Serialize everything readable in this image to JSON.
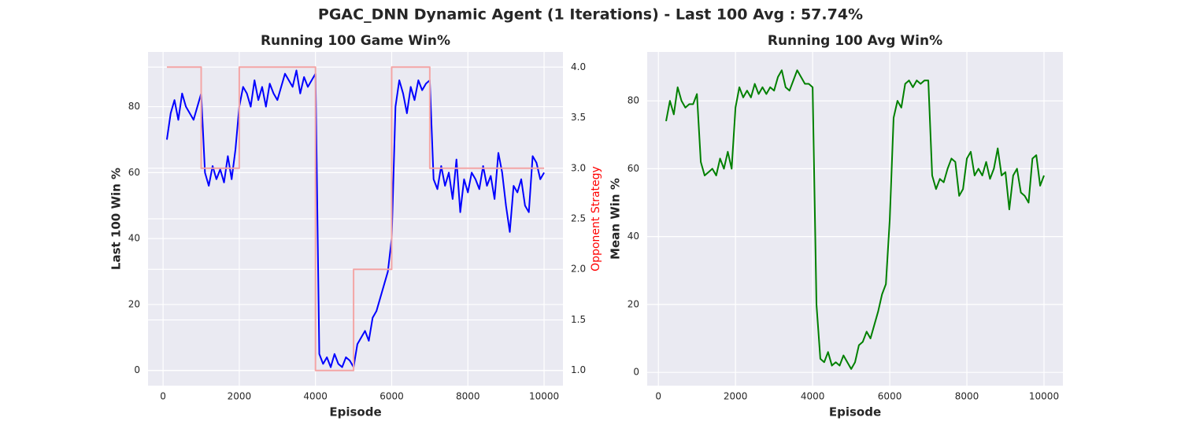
{
  "title": "PGAC_DNN Dynamic Agent (1 Iterations) -  Last 100 Avg : 57.74%",
  "chart_data": [
    {
      "type": "line",
      "title": "Running 100 Game Win%",
      "xlabel": "Episode",
      "ylabel": "Last 100 Win %",
      "y2label": "Opponent Strategy",
      "y2label_color": "#ff0000",
      "xlim": [
        -395,
        10495
      ],
      "xticks": [
        0,
        2000,
        4000,
        6000,
        8000,
        10000
      ],
      "ylim": [
        -4.6,
        96.6
      ],
      "yticks": [
        0,
        20,
        40,
        60,
        80
      ],
      "y2lim": [
        0.85,
        4.15
      ],
      "y2ticks": [
        {
          "value": 1,
          "label": "1.0"
        },
        1.5,
        {
          "value": 2,
          "label": "2.0"
        },
        2.5,
        {
          "value": 3,
          "label": "3.0"
        },
        3.5,
        {
          "value": 4,
          "label": "4.0"
        }
      ],
      "grid": true,
      "series": [
        {
          "color": "#0000ff",
          "width": 2,
          "x": [
            100,
            200,
            300,
            400,
            500,
            600,
            700,
            800,
            900,
            1000,
            1100,
            1200,
            1300,
            1400,
            1500,
            1600,
            1700,
            1800,
            1900,
            2000,
            2100,
            2200,
            2300,
            2400,
            2500,
            2600,
            2700,
            2800,
            2900,
            3000,
            3100,
            3200,
            3300,
            3400,
            3500,
            3600,
            3700,
            3800,
            3900,
            4000,
            4100,
            4200,
            4300,
            4400,
            4500,
            4600,
            4700,
            4800,
            4900,
            5000,
            5100,
            5200,
            5300,
            5400,
            5500,
            5600,
            5700,
            5800,
            5900,
            6000,
            6100,
            6200,
            6300,
            6400,
            6500,
            6600,
            6700,
            6800,
            6900,
            7000,
            7100,
            7200,
            7300,
            7400,
            7500,
            7600,
            7700,
            7800,
            7900,
            8000,
            8100,
            8200,
            8300,
            8400,
            8500,
            8600,
            8700,
            8800,
            8900,
            9000,
            9100,
            9200,
            9300,
            9400,
            9500,
            9600,
            9700,
            9800,
            9900,
            10000
          ],
          "values": [
            70,
            78,
            82,
            76,
            84,
            80,
            78,
            76,
            80,
            84,
            60,
            56,
            62,
            58,
            61,
            57,
            65,
            58,
            67,
            80,
            86,
            84,
            80,
            88,
            82,
            86,
            80,
            87,
            84,
            82,
            86,
            90,
            88,
            86,
            91,
            84,
            89,
            86,
            88,
            90,
            5,
            2,
            4,
            1,
            5,
            2,
            1,
            4,
            3,
            1,
            8,
            10,
            12,
            9,
            16,
            18,
            22,
            26,
            30,
            40,
            80,
            88,
            84,
            78,
            86,
            82,
            88,
            85,
            87,
            88,
            58,
            55,
            62,
            56,
            60,
            52,
            64,
            48,
            58,
            54,
            60,
            58,
            55,
            62,
            56,
            59,
            52,
            66,
            60,
            50,
            42,
            56,
            54,
            58,
            50,
            48,
            65,
            63,
            58,
            60
          ]
        },
        {
          "color": "#f4a6a6",
          "width": 2,
          "axis": "y2",
          "x": [
            100,
            1000,
            1000,
            2000,
            2000,
            4000,
            4000,
            5000,
            5000,
            6000,
            6000,
            7000,
            7000,
            10000
          ],
          "values": [
            4,
            4,
            3,
            3,
            4,
            4,
            1,
            1,
            2,
            2,
            4,
            4,
            3,
            3
          ]
        }
      ]
    },
    {
      "type": "line",
      "title": "Running 100 Avg Win%",
      "xlabel": "Episode",
      "ylabel": "Mean Win %",
      "xlim": [
        -290,
        10490
      ],
      "xticks": [
        0,
        2000,
        4000,
        6000,
        8000,
        10000
      ],
      "ylim": [
        -3.9,
        94.4
      ],
      "yticks": [
        0,
        20,
        40,
        60,
        80
      ],
      "grid": true,
      "series": [
        {
          "color": "#008000",
          "width": 2,
          "x": [
            200,
            300,
            400,
            500,
            600,
            700,
            800,
            900,
            1000,
            1100,
            1200,
            1300,
            1400,
            1500,
            1600,
            1700,
            1800,
            1900,
            2000,
            2100,
            2200,
            2300,
            2400,
            2500,
            2600,
            2700,
            2800,
            2900,
            3000,
            3100,
            3200,
            3300,
            3400,
            3500,
            3600,
            3700,
            3800,
            3900,
            4000,
            4100,
            4200,
            4300,
            4400,
            4500,
            4600,
            4700,
            4800,
            4900,
            5000,
            5100,
            5200,
            5300,
            5400,
            5500,
            5600,
            5700,
            5800,
            5900,
            6000,
            6100,
            6200,
            6300,
            6400,
            6500,
            6600,
            6700,
            6800,
            6900,
            7000,
            7100,
            7200,
            7300,
            7400,
            7500,
            7600,
            7700,
            7800,
            7900,
            8000,
            8100,
            8200,
            8300,
            8400,
            8500,
            8600,
            8700,
            8800,
            8900,
            9000,
            9100,
            9200,
            9300,
            9400,
            9500,
            9600,
            9700,
            9800,
            9900,
            10000
          ],
          "values": [
            74,
            80,
            76,
            84,
            80,
            78,
            79,
            79,
            82,
            62,
            58,
            59,
            60,
            58,
            63,
            60,
            65,
            60,
            78,
            84,
            81,
            83,
            81,
            85,
            82,
            84,
            82,
            84,
            83,
            87,
            89,
            84,
            83,
            86,
            89,
            87,
            85,
            85,
            84,
            20,
            4,
            3,
            6,
            2,
            3,
            2,
            5,
            3,
            1,
            3,
            8,
            9,
            12,
            10,
            14,
            18,
            23,
            26,
            45,
            75,
            80,
            78,
            85,
            86,
            84,
            86,
            85,
            86,
            86,
            58,
            54,
            57,
            56,
            60,
            63,
            62,
            52,
            54,
            63,
            65,
            58,
            60,
            58,
            62,
            57,
            60,
            66,
            58,
            59,
            48,
            58,
            60,
            53,
            52,
            50,
            63,
            64,
            55,
            58
          ]
        }
      ]
    }
  ]
}
